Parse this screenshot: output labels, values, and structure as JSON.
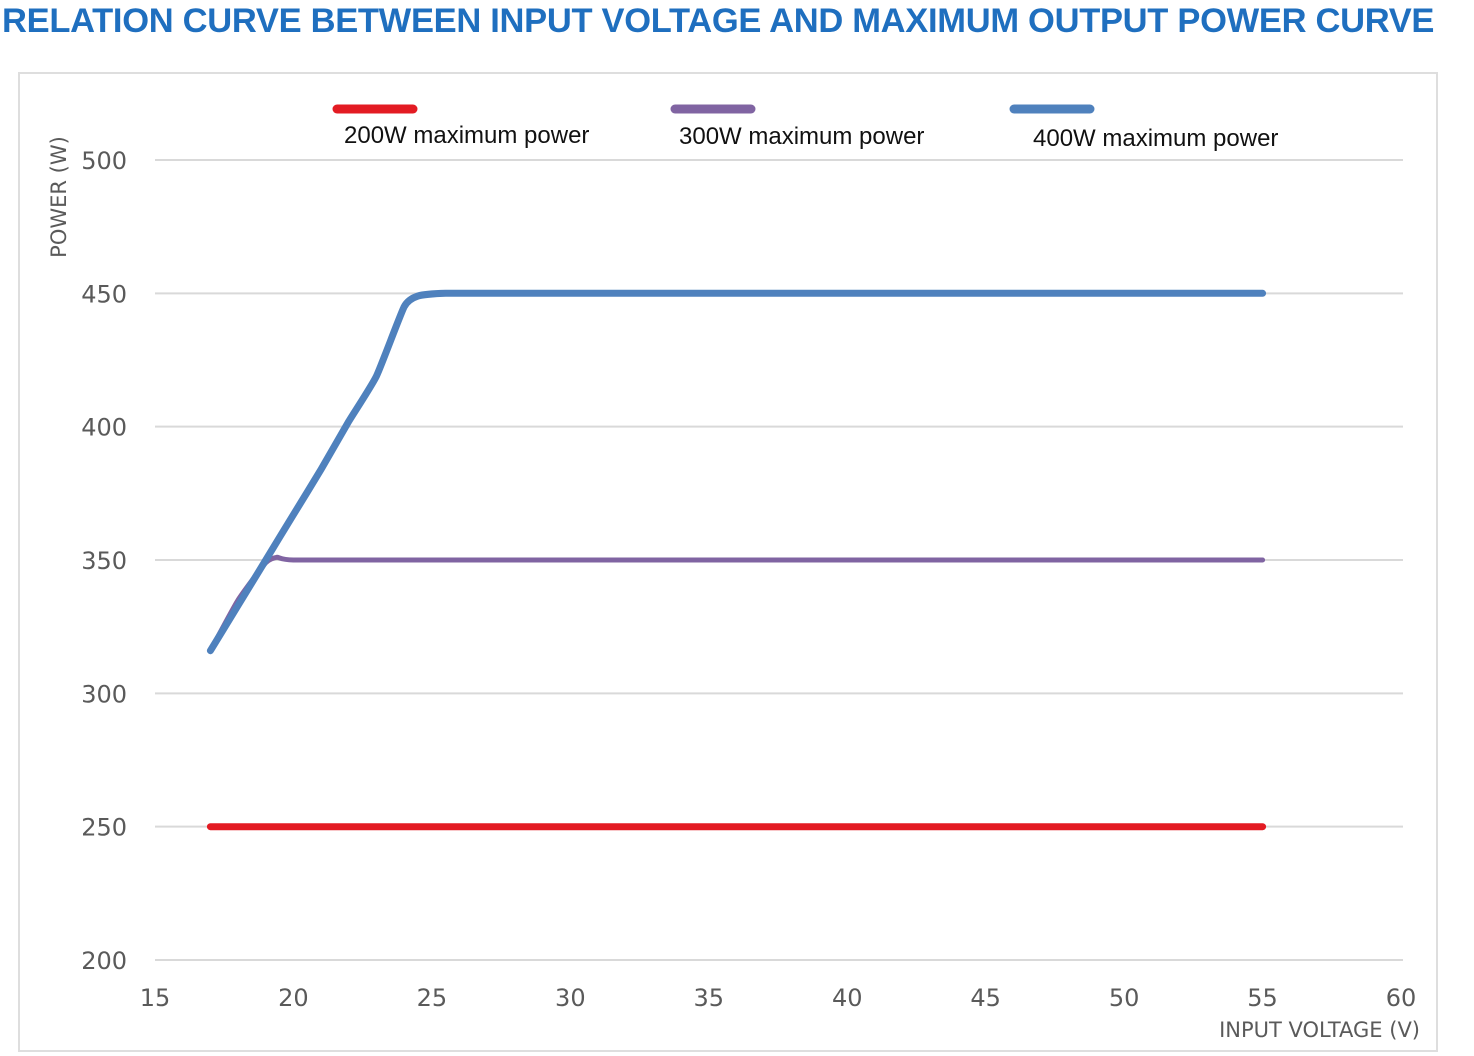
{
  "title": "RELATION CURVE BETWEEN INPUT VOLTAGE AND MAXIMUM OUTPUT POWER CURVE",
  "chart_data": {
    "type": "line",
    "title": "RELATION CURVE BETWEEN INPUT VOLTAGE AND MAXIMUM OUTPUT POWER CURVE",
    "xlabel": "INPUT VOLTAGE (V)",
    "ylabel": "POWER (W)",
    "xlim": [
      15,
      60
    ],
    "ylim": [
      200,
      500
    ],
    "xticks": [
      15,
      20,
      25,
      30,
      35,
      40,
      45,
      50,
      55,
      60
    ],
    "yticks": [
      200,
      250,
      300,
      350,
      400,
      450,
      500
    ],
    "grid": "horizontal",
    "legend_position": "top",
    "series": [
      {
        "name": "200W maximum power",
        "color": "#e31b23",
        "x": [
          17,
          55
        ],
        "y": [
          250,
          250
        ]
      },
      {
        "name": "300W maximum power",
        "color": "#8064a2",
        "x": [
          17,
          18,
          19,
          19.4,
          20,
          25,
          55
        ],
        "y": [
          316,
          335,
          349,
          351,
          350,
          350,
          350
        ]
      },
      {
        "name": "400W maximum power",
        "color": "#4f81bd",
        "x": [
          17,
          18,
          19,
          20,
          21,
          22,
          23,
          24,
          24.5,
          25.5,
          30,
          55
        ],
        "y": [
          316,
          333,
          350,
          367,
          384,
          402,
          419,
          445,
          449,
          450,
          450,
          450
        ]
      }
    ]
  }
}
